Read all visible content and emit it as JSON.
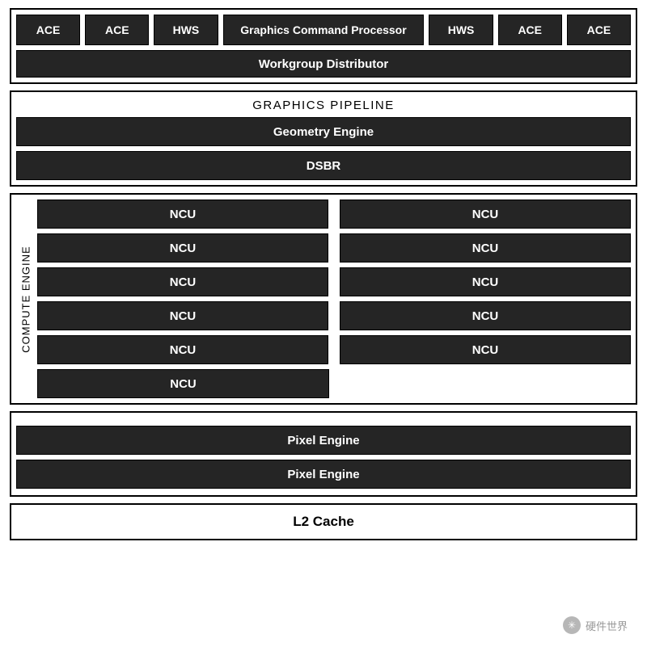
{
  "colors": {
    "block_bg": "#252525",
    "block_text": "#ffffff",
    "border": "#000000",
    "page_bg": "#ffffff",
    "title_text": "#000000"
  },
  "typography": {
    "font_family": "Arial, sans-serif",
    "block_fontsize": 15,
    "title_fontsize": 15,
    "vlabel_fontsize": 13,
    "l2_fontsize": 17
  },
  "top": {
    "row": [
      "ACE",
      "ACE",
      "HWS",
      "Graphics Command Processor",
      "HWS",
      "ACE",
      "ACE"
    ],
    "gcp_index": 3,
    "workgroup": "Workgroup Distributor"
  },
  "pipeline": {
    "title": "GRAPHICS PIPELINE",
    "blocks": [
      "Geometry Engine",
      "DSBR"
    ]
  },
  "compute": {
    "vlabel": "COMPUTE ENGINE",
    "ncu_label": "NCU",
    "rows": [
      [
        true,
        true
      ],
      [
        true,
        true
      ],
      [
        true,
        true
      ],
      [
        true,
        true
      ],
      [
        true,
        true
      ],
      [
        true,
        false
      ]
    ]
  },
  "pixel": {
    "blocks": [
      "Pixel Engine",
      "Pixel Engine"
    ]
  },
  "l2": "L2 Cache",
  "watermark": {
    "icon": "✳",
    "text": "硬件世界"
  }
}
